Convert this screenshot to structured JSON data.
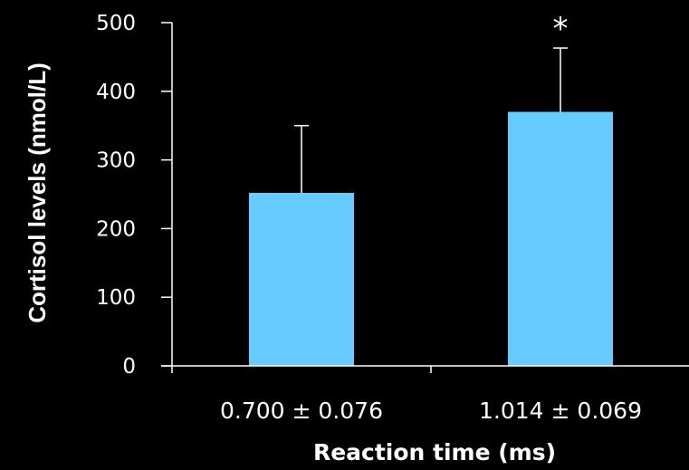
{
  "chart_data": {
    "type": "bar",
    "categories": [
      "0.700 ± 0.076",
      "1.014 ± 0.069"
    ],
    "values": [
      252,
      370
    ],
    "error_plus": [
      98,
      93
    ],
    "annotations": [
      "",
      "*"
    ],
    "xlabel": "Reaction time (ms)",
    "ylabel": "Cortisol levels (nmol/L)",
    "ylim": [
      0,
      500
    ],
    "yticks": [
      0,
      100,
      200,
      300,
      400,
      500
    ],
    "grid": false,
    "colors": {
      "bar": "#66ccff",
      "axis": "#ffffff",
      "background": "#000000",
      "text": "#ffffff"
    }
  }
}
